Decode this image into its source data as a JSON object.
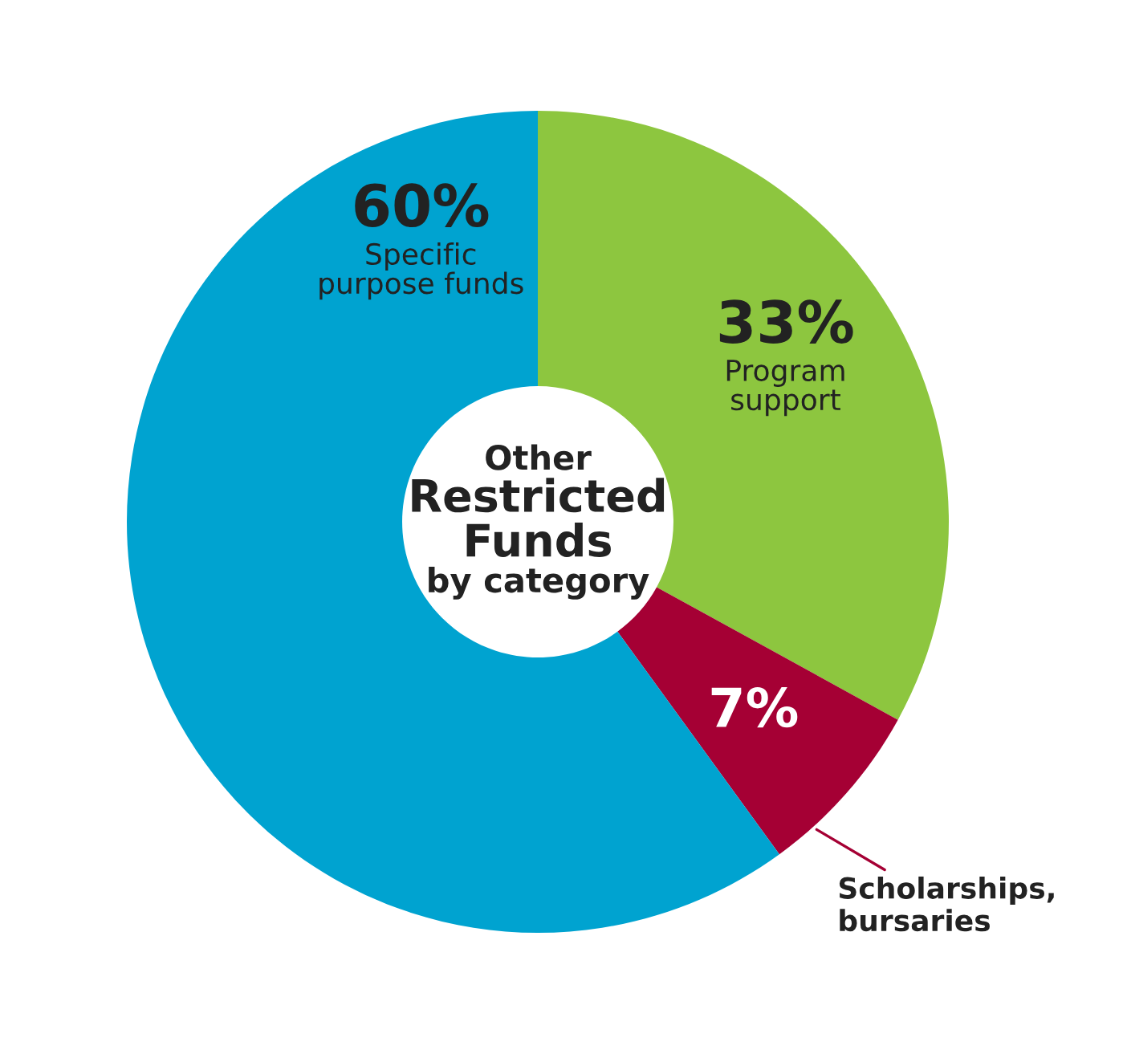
{
  "chart_data": {
    "type": "donut",
    "title": "Other\nRestricted\nFunds\nby category",
    "categories": [
      "Program\nsupport",
      "Scholarships,\nbursaries",
      "Specific\npurpose funds"
    ],
    "values": [
      33,
      7,
      60
    ],
    "value_labels": [
      "33%",
      "7%",
      "60%"
    ],
    "colors": [
      "#8dc63f",
      "#a50034",
      "#00a3d0"
    ],
    "legend": false
  }
}
